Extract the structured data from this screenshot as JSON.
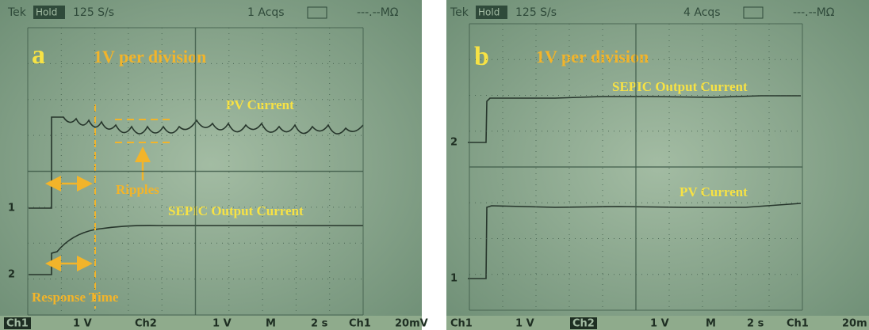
{
  "panels": [
    {
      "header": {
        "brand": "Tek",
        "mode": "Hold",
        "rate": "125 S/s",
        "acqs": "1 Acqs",
        "impedance": "---.--MΩ"
      },
      "label": "a",
      "scale": "1V per division",
      "annotations": {
        "trace1": "PV Current",
        "ripples": "Ripples",
        "trace2": "SEPIC Output Current",
        "response": "Response Time"
      },
      "markers": [
        "1",
        "2"
      ],
      "footer": [
        "Ch1",
        "1 V",
        "Ch2",
        "1 V",
        "M",
        "2 s",
        "Ch1",
        "20mV"
      ]
    },
    {
      "header": {
        "brand": "Tek",
        "mode": "Hold",
        "rate": "125 S/s",
        "acqs": "4 Acqs",
        "impedance": "---.--MΩ"
      },
      "label": "b",
      "scale": "1V per division",
      "annotations": {
        "trace1": "SEPIC Output Current",
        "trace2": "PV Current"
      },
      "markers": [
        "2",
        "1"
      ],
      "footer": [
        "Ch1",
        "1 V",
        "Ch2",
        "1 V",
        "M",
        "2 s",
        "Ch1",
        "20m"
      ]
    }
  ]
}
